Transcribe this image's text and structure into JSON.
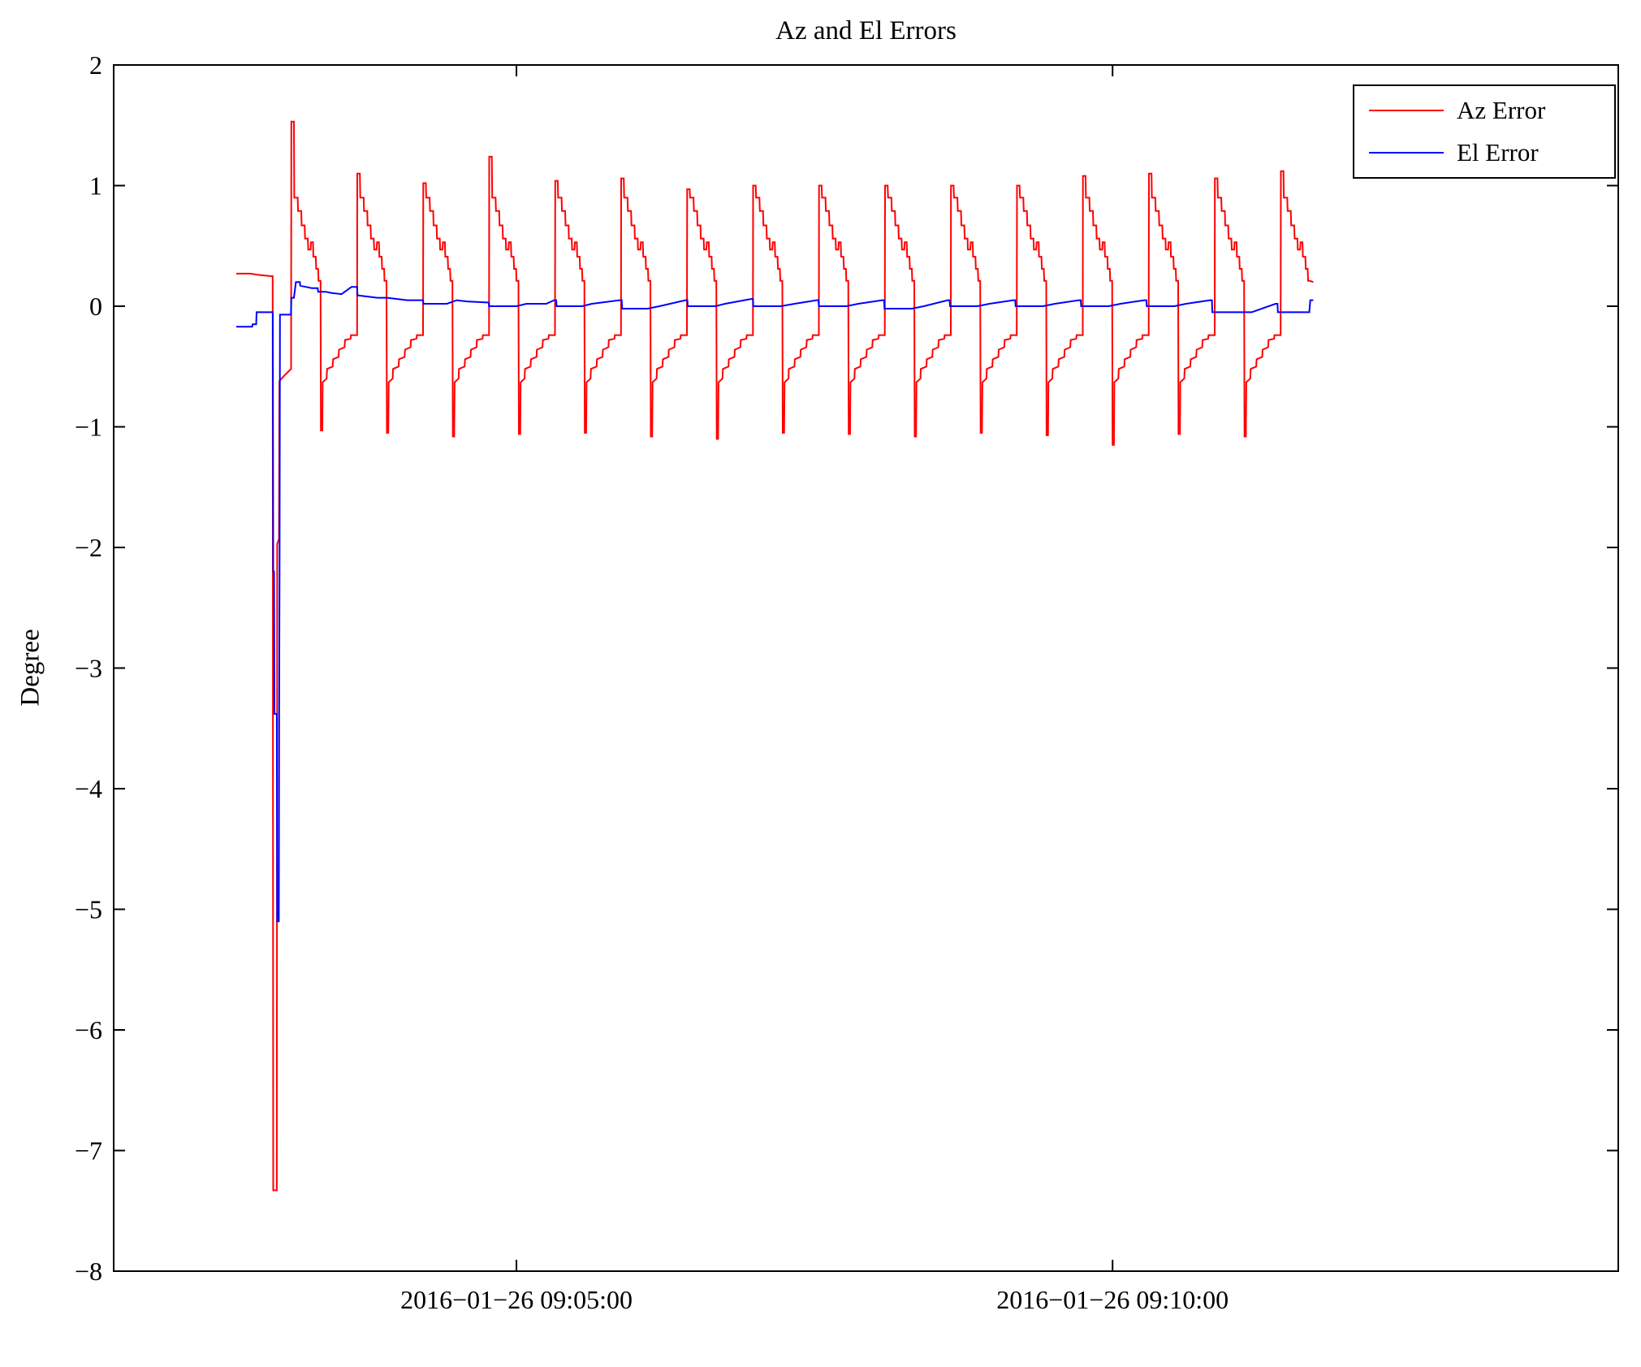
{
  "chart_data": {
    "type": "line",
    "title": "Az and El Errors",
    "xlabel": "",
    "ylabel": "Degree",
    "grid": false,
    "legend_position": "top-right",
    "ylim": [
      -8,
      2
    ],
    "xlim_seconds_rel_090500": [
      -202.7,
      554.5
    ],
    "y_ticks": [
      2,
      1,
      0,
      -1,
      -2,
      -3,
      -4,
      -5,
      -6,
      -7,
      -8
    ],
    "y_tick_labels": [
      "2",
      "1",
      "0",
      "−1",
      "−2",
      "−3",
      "−4",
      "−5",
      "−6",
      "−7",
      "−8"
    ],
    "x_ticks": [
      {
        "t": 0,
        "label": "2016−01−26 09:05:00"
      },
      {
        "t": 300,
        "label": "2016−01−26 09:10:00"
      }
    ],
    "series": [
      {
        "name": "Az Error",
        "color": "#ff0000",
        "encoding": "prefix points, then repeating sawtooth cycles (t in seconds relative to 09:05:00, value in degrees)",
        "prefix_points": [
          [
            -141,
            0.27
          ],
          [
            -134,
            0.27
          ],
          [
            -130,
            0.26
          ],
          [
            -124,
            0.25
          ],
          [
            -122.7,
            0.25
          ],
          [
            -122.4,
            -7.33
          ],
          [
            -120.6,
            -7.33
          ],
          [
            -120.4,
            -1.97
          ],
          [
            -119.5,
            -1.93
          ],
          [
            -119.3,
            -0.62
          ],
          [
            -116.5,
            -0.57
          ],
          [
            -113.4,
            -0.52
          ]
        ],
        "cycle_start": -113.3,
        "cycle_period": 33.2,
        "cycle_template": [
          [
            0,
            "P"
          ],
          [
            1.3,
            "P"
          ],
          [
            1.5,
            0.9
          ],
          [
            3.2,
            0.9
          ],
          [
            3.4,
            0.79
          ],
          [
            5.0,
            0.79
          ],
          [
            5.2,
            0.67
          ],
          [
            6.7,
            0.67
          ],
          [
            6.9,
            0.56
          ],
          [
            8.3,
            0.56
          ],
          [
            8.5,
            0.47
          ],
          [
            9.7,
            0.47
          ],
          [
            9.9,
            0.53
          ],
          [
            10.9,
            0.53
          ],
          [
            11.1,
            0.41
          ],
          [
            12.3,
            0.41
          ],
          [
            12.5,
            0.31
          ],
          [
            13.5,
            0.31
          ],
          [
            13.7,
            0.21
          ],
          [
            14.7,
            0.21
          ],
          [
            14.9,
            "D"
          ],
          [
            15.6,
            "D"
          ],
          [
            15.8,
            -0.63
          ],
          [
            17.8,
            -0.6
          ],
          [
            18.0,
            -0.52
          ],
          [
            20.8,
            -0.5
          ],
          [
            21.0,
            -0.44
          ],
          [
            23.8,
            -0.42
          ],
          [
            24.0,
            -0.36
          ],
          [
            26.8,
            -0.34
          ],
          [
            27.0,
            -0.28
          ],
          [
            29.8,
            -0.27
          ],
          [
            30.0,
            -0.24
          ],
          [
            33.1,
            -0.24
          ]
        ],
        "peaks": [
          1.53,
          1.1,
          1.02,
          1.24,
          1.04,
          1.06,
          0.97,
          1.0,
          1.0,
          1.0,
          1.0,
          1.0,
          1.08,
          1.1,
          1.06,
          1.12
        ],
        "dips": [
          -1.03,
          -1.05,
          -1.08,
          -1.06,
          -1.05,
          -1.08,
          -1.1,
          -1.05,
          -1.06,
          -1.08,
          -1.05,
          -1.07,
          -1.15,
          -1.06,
          -1.08,
          -1.05
        ],
        "last_cycle_cut_dt": 14.8,
        "last_cycle_end_dt": 16.3,
        "last_cycle_end_value": 0.2
      },
      {
        "name": "El Error",
        "color": "#0000ff",
        "points": [
          [
            -141,
            -0.17
          ],
          [
            -133,
            -0.17
          ],
          [
            -132.8,
            -0.15
          ],
          [
            -131,
            -0.15
          ],
          [
            -130.8,
            -0.05
          ],
          [
            -122.6,
            -0.05
          ],
          [
            -122.4,
            -2.2
          ],
          [
            -122,
            -2.2
          ],
          [
            -121.8,
            -3.38
          ],
          [
            -120.6,
            -3.38
          ],
          [
            -120.4,
            -5.1
          ],
          [
            -119.6,
            -5.1
          ],
          [
            -119.4,
            -3.35
          ],
          [
            -119.2,
            -2.2
          ],
          [
            -119,
            -0.07
          ],
          [
            -113.5,
            -0.07
          ],
          [
            -113.3,
            0.07
          ],
          [
            -112,
            0.07
          ],
          [
            -111,
            0.2
          ],
          [
            -109,
            0.2
          ],
          [
            -108.8,
            0.17
          ],
          [
            -106,
            0.16
          ],
          [
            -103,
            0.15
          ],
          [
            -100,
            0.15
          ],
          [
            -99.8,
            0.12
          ],
          [
            -96,
            0.12
          ],
          [
            -93,
            0.11
          ],
          [
            -88,
            0.1
          ],
          [
            -83,
            0.16
          ],
          [
            -80.2,
            0.16
          ],
          [
            -80,
            0.09
          ],
          [
            -75,
            0.08
          ],
          [
            -70,
            0.07
          ],
          [
            -65,
            0.07
          ],
          [
            -60,
            0.06
          ],
          [
            -55,
            0.05
          ],
          [
            -47,
            0.05
          ],
          [
            -46.8,
            0.02
          ],
          [
            -40,
            0.02
          ],
          [
            -35,
            0.02
          ],
          [
            -30,
            0.05
          ],
          [
            -25,
            0.04
          ],
          [
            -14,
            0.03
          ],
          [
            -13.8,
            0.0
          ],
          [
            0,
            0.0
          ],
          [
            5,
            0.02
          ],
          [
            15,
            0.02
          ],
          [
            19,
            0.05
          ],
          [
            20,
            0.05
          ],
          [
            20.2,
            0.0
          ],
          [
            33,
            0.0
          ],
          [
            38,
            0.02
          ],
          [
            52,
            0.05
          ],
          [
            53,
            0.05
          ],
          [
            53.2,
            -0.02
          ],
          [
            66,
            -0.02
          ],
          [
            72,
            0.0
          ],
          [
            85,
            0.05
          ],
          [
            86,
            0.05
          ],
          [
            86.2,
            0.0
          ],
          [
            100,
            0.0
          ],
          [
            105,
            0.02
          ],
          [
            118,
            0.06
          ],
          [
            119,
            0.06
          ],
          [
            119.2,
            0.0
          ],
          [
            133,
            0.0
          ],
          [
            140,
            0.02
          ],
          [
            151,
            0.05
          ],
          [
            152,
            0.05
          ],
          [
            152.2,
            0.0
          ],
          [
            166,
            0.0
          ],
          [
            172,
            0.02
          ],
          [
            184,
            0.05
          ],
          [
            185,
            0.05
          ],
          [
            185.2,
            -0.02
          ],
          [
            199,
            -0.02
          ],
          [
            205,
            0.0
          ],
          [
            217,
            0.05
          ],
          [
            218,
            0.05
          ],
          [
            218.2,
            0.0
          ],
          [
            232,
            0.0
          ],
          [
            238,
            0.02
          ],
          [
            250,
            0.05
          ],
          [
            251,
            0.05
          ],
          [
            251.2,
            0.0
          ],
          [
            265,
            0.0
          ],
          [
            271,
            0.02
          ],
          [
            283,
            0.05
          ],
          [
            284,
            0.05
          ],
          [
            284.2,
            0.0
          ],
          [
            298,
            0.0
          ],
          [
            304,
            0.02
          ],
          [
            316,
            0.05
          ],
          [
            317,
            0.05
          ],
          [
            317.2,
            0.0
          ],
          [
            331,
            0.0
          ],
          [
            337,
            0.02
          ],
          [
            349,
            0.05
          ],
          [
            350,
            0.05
          ],
          [
            350.2,
            -0.05
          ],
          [
            364,
            -0.05
          ],
          [
            370,
            -0.05
          ],
          [
            382,
            0.02
          ],
          [
            383,
            0.02
          ],
          [
            383.2,
            -0.05
          ],
          [
            397,
            -0.05
          ],
          [
            399,
            -0.05
          ],
          [
            399.5,
            0.05
          ],
          [
            401,
            0.05
          ]
        ]
      }
    ]
  },
  "layout_colors": {
    "axis": "#000000",
    "background": "#ffffff"
  }
}
